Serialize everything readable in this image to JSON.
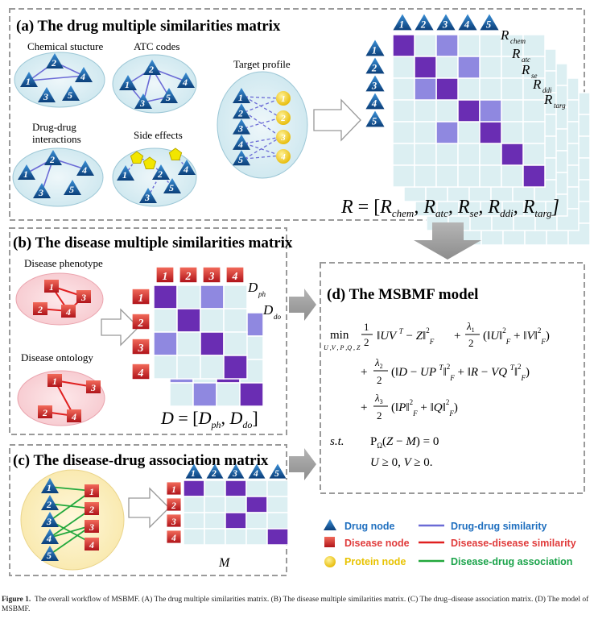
{
  "panels": {
    "a": {
      "title": "(a) The drug multiple similarities matrix",
      "labels": [
        "Chemical stucture",
        "ATC codes",
        "Target profile",
        "Drug-drug",
        "interactions",
        "Side effects"
      ],
      "matrix_labels": [
        "R",
        "chem",
        "R",
        "atc",
        "R",
        "se",
        "R",
        "ddi",
        "R",
        "targ"
      ],
      "drug_numbers": [
        "1",
        "2",
        "3",
        "4",
        "5"
      ],
      "formula": "R = [R_chem, R_atc, R_se, R_ddi, R_targ]"
    },
    "b": {
      "title": "(b) The disease multiple similarities matrix",
      "labels": [
        "Disease phenotype",
        "Disease ontology"
      ],
      "disease_numbers": [
        "1",
        "2",
        "3",
        "4"
      ],
      "matrix_labels": [
        "D",
        "ph",
        "D",
        "do"
      ],
      "formula": "D = [D_ph, D_do]"
    },
    "c": {
      "title": "(c) The disease-drug association matrix",
      "matrix_label": "M"
    },
    "d": {
      "title": "(d)  The MSBMF model"
    }
  },
  "legend": [
    {
      "label": "Drug node",
      "color": "#1f6fbf"
    },
    {
      "label": "Drug-drug similarity",
      "color": "#1f6fbf"
    },
    {
      "label": "Disease node",
      "color": "#e03b3b"
    },
    {
      "label": "Disease-disease similarity",
      "color": "#e03b3b"
    },
    {
      "label": "Protein node",
      "color": "#e8c300"
    },
    {
      "label": "Disease-drug association",
      "color": "#1aa34a"
    }
  ],
  "caption": {
    "label": "Figure 1.",
    "text": "The overall workflow of MSBMF. (A) The drug multiple similarities matrix. (B) The disease multiple similarities matrix. (C) The drug–disease association matrix. (D) The model of MSBMF."
  }
}
